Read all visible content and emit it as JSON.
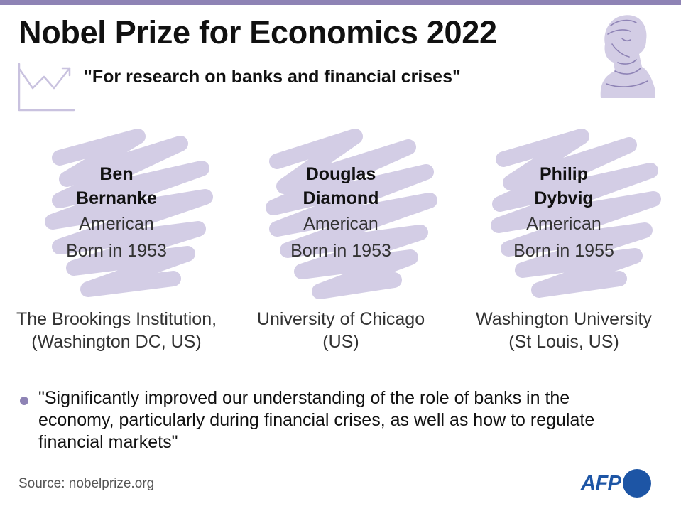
{
  "header": {
    "title": "Nobel Prize for Economics 2022",
    "subtitle": "\"For research on banks and financial crises\"",
    "trend_icon": "trend-line-icon",
    "portrait_icon": "alfred-nobel-portrait-icon"
  },
  "colors": {
    "accent": "#8e83b5",
    "scribble": "#d3cde5",
    "afp_blue": "#1d55a5"
  },
  "laureates": [
    {
      "name_lines": [
        "Ben",
        "Bernanke"
      ],
      "nationality": "American",
      "born": "Born in 1953",
      "institution_lines": [
        "The Brookings Institution,",
        "(Washington DC, US)"
      ]
    },
    {
      "name_lines": [
        "Douglas",
        "Diamond"
      ],
      "nationality": "American",
      "born": "Born in 1953",
      "institution_lines": [
        "University of Chicago",
        "(US)"
      ]
    },
    {
      "name_lines": [
        "Philip",
        "Dybvig"
      ],
      "nationality": "American",
      "born": "Born in 1955",
      "institution_lines": [
        "Washington University",
        "(St Louis, US)"
      ]
    }
  ],
  "quote": "\"Significantly improved our understanding of the role of banks in the economy, particularly during financial crises, as well as how to regulate financial markets\"",
  "footer": {
    "source": "Source: nobelprize.org",
    "logo_text": "AFP"
  }
}
